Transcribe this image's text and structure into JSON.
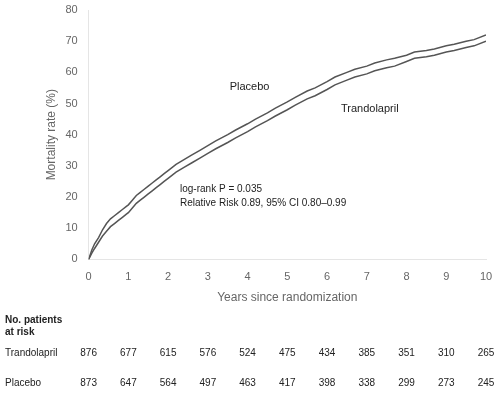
{
  "chart_data": {
    "type": "line",
    "xlabel": "Years since randomization",
    "ylabel": "Mortality rate (%)",
    "xlim": [
      0,
      10
    ],
    "ylim": [
      0,
      80
    ],
    "xticks": [
      0,
      1,
      2,
      3,
      4,
      5,
      6,
      7,
      8,
      9,
      10
    ],
    "yticks": [
      0,
      10,
      20,
      30,
      40,
      50,
      60,
      70,
      80
    ],
    "grid": false,
    "series": [
      {
        "name": "Placebo",
        "color": "#555555",
        "x": [
          0,
          0.08,
          0.15,
          0.25,
          0.35,
          0.45,
          0.55,
          0.65,
          0.75,
          0.85,
          0.95,
          1.0,
          1.1,
          1.2,
          1.3,
          1.4,
          1.5,
          1.6,
          1.7,
          1.8,
          1.9,
          2.0,
          2.2,
          2.4,
          2.6,
          2.8,
          3.0,
          3.2,
          3.5,
          3.7,
          4.0,
          4.2,
          4.5,
          4.7,
          5.0,
          5.2,
          5.5,
          5.7,
          6.0,
          6.2,
          6.5,
          6.7,
          7.0,
          7.2,
          7.5,
          7.7,
          8.0,
          8.2,
          8.5,
          8.7,
          9.0,
          9.2,
          9.5,
          9.7,
          10.0
        ],
        "values": [
          0,
          3,
          5,
          7,
          9.5,
          11.5,
          13,
          14,
          15,
          16,
          17,
          17.5,
          19,
          20.5,
          21.5,
          22.5,
          23.5,
          24.5,
          25.5,
          26.5,
          27.5,
          28.5,
          30.5,
          32,
          33.5,
          35,
          36.5,
          38,
          40,
          41.5,
          43.5,
          45,
          47,
          48.5,
          50.5,
          52,
          54,
          55,
          57,
          58.5,
          60,
          61,
          62,
          63,
          64,
          64.5,
          65.5,
          66.5,
          67,
          67.5,
          68.5,
          69,
          70,
          70.5,
          72
        ]
      },
      {
        "name": "Trandolapril",
        "color": "#555555",
        "x": [
          0,
          0.08,
          0.15,
          0.25,
          0.35,
          0.45,
          0.55,
          0.65,
          0.75,
          0.85,
          0.95,
          1.0,
          1.1,
          1.2,
          1.3,
          1.4,
          1.5,
          1.6,
          1.7,
          1.8,
          1.9,
          2.0,
          2.2,
          2.4,
          2.6,
          2.8,
          3.0,
          3.2,
          3.5,
          3.7,
          4.0,
          4.2,
          4.5,
          4.7,
          5.0,
          5.2,
          5.5,
          5.7,
          6.0,
          6.2,
          6.5,
          6.7,
          7.0,
          7.2,
          7.5,
          7.7,
          8.0,
          8.2,
          8.5,
          8.7,
          9.0,
          9.2,
          9.5,
          9.7,
          10.0
        ],
        "values": [
          0,
          2,
          3.5,
          5.5,
          7.5,
          9,
          10.5,
          11.5,
          12.5,
          13.5,
          14.5,
          15,
          16.5,
          18,
          19,
          20,
          21,
          22,
          23,
          24,
          25,
          26,
          28,
          29.5,
          31,
          32.5,
          34,
          35.5,
          37.5,
          39,
          41,
          42.5,
          44.5,
          46,
          48,
          49.5,
          51.5,
          52.5,
          54.5,
          56,
          57.5,
          58.5,
          59.5,
          60.5,
          61.5,
          62,
          63.5,
          64.5,
          65,
          65.5,
          66.5,
          67,
          68,
          68.5,
          70
        ]
      }
    ],
    "annotations": [
      {
        "text": "Placebo",
        "x": 3.55,
        "y": 57
      },
      {
        "text": "Trandolapril",
        "x": 6.35,
        "y": 50
      },
      {
        "text": "log-rank P = 0.035\nRelative Risk 0.89, 95% CI 0.80–0.99",
        "x": 2.3,
        "y": 24
      }
    ],
    "at_risk": {
      "title": "No. patients\nat risk",
      "rows": [
        {
          "name": "Trandolapril",
          "values": [
            876,
            677,
            615,
            576,
            524,
            475,
            434,
            385,
            351,
            310,
            265
          ]
        },
        {
          "name": "Placebo",
          "values": [
            873,
            647,
            564,
            497,
            463,
            417,
            398,
            338,
            299,
            273,
            245
          ]
        }
      ]
    }
  }
}
